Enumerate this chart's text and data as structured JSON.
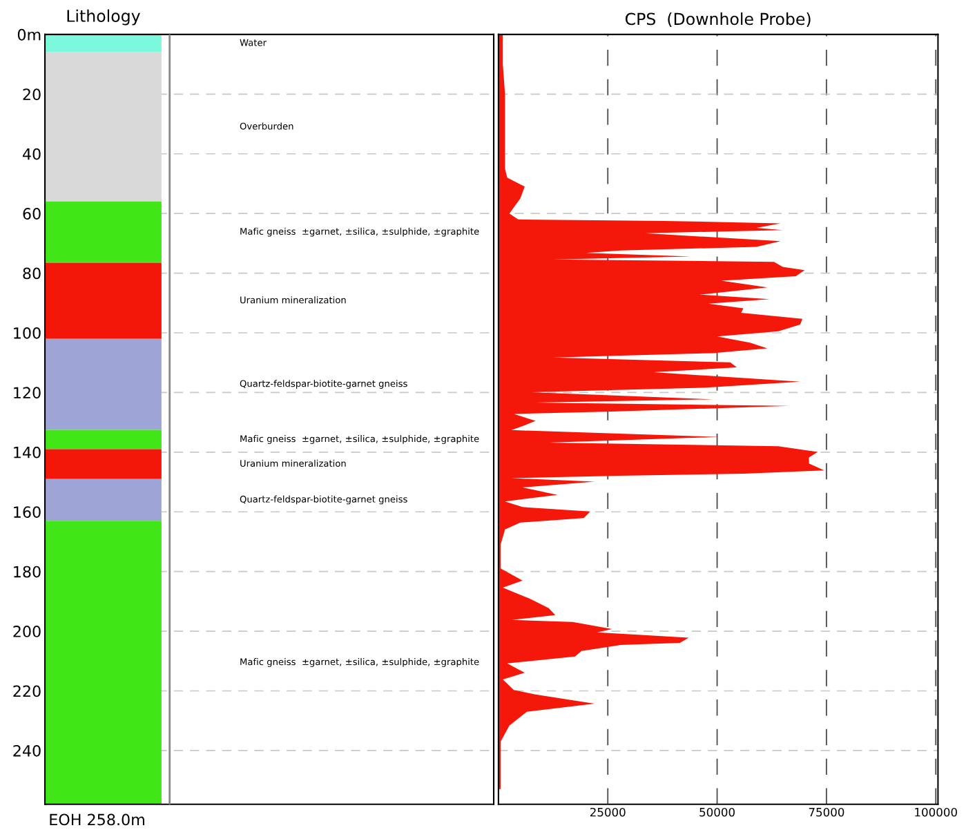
{
  "chart_data": [
    {
      "type": "bar",
      "stacked": true,
      "title": "Lithology",
      "categories": [
        null
      ],
      "ylim": [
        258,
        0
      ],
      "yticks": [
        {
          "value": 0,
          "label": "0m"
        },
        20,
        40,
        60,
        80,
        100,
        120,
        140,
        160,
        180,
        200,
        220,
        240
      ],
      "grid": "y",
      "tick_labels": "y",
      "series": [
        {
          "name": "Water",
          "color": "#7cf8dc",
          "values": [
            6
          ]
        },
        {
          "name": "Overburden",
          "color": "#d9d9d9",
          "values": [
            50
          ]
        },
        {
          "name": "Mafic gneiss  ±garnet, ±silica, ±sulphide, ±graphite",
          "color": "#41e619",
          "values": [
            20.5
          ]
        },
        {
          "name": "Uranium mineralization",
          "color": "#f5160a",
          "values": [
            25.5
          ]
        },
        {
          "name": "Quartz-feldspar-biotite-garnet gneiss",
          "color": "#9fa4d6",
          "values": [
            30.5
          ]
        },
        {
          "name": "Mafic gneiss  ±garnet, ±silica, ±sulphide, ±graphite",
          "color": "#41e619",
          "values": [
            6.5
          ]
        },
        {
          "name": "Uranium mineralization",
          "color": "#f5160a",
          "values": [
            10
          ]
        },
        {
          "name": "Quartz-feldspar-biotite-garnet gneiss",
          "color": "#9fa4d6",
          "values": [
            14
          ]
        },
        {
          "name": "Mafic gneiss  ±garnet, ±silica, ±sulphide, ±graphite",
          "color": "#41e619",
          "values": [
            95
          ]
        }
      ],
      "annotations": [
        "EOH 258.0m"
      ]
    },
    {
      "type": "area",
      "orientation": "horizontal",
      "title": "CPS  (Downhole Probe)",
      "ylim": [
        258,
        0
      ],
      "yticks": [
        0,
        20,
        40,
        60,
        80,
        100,
        120,
        140,
        160,
        180,
        200,
        220,
        240
      ],
      "xlim": [
        0,
        100500
      ],
      "xticks": [
        25000,
        50000,
        75000,
        100000
      ],
      "tick_labels": "x",
      "grid": true,
      "x": [
        0,
        10,
        20,
        30,
        45,
        48,
        51,
        55,
        58,
        60,
        62,
        62.5,
        63.3,
        64.8,
        65.6,
        66.6,
        67.7,
        69.3,
        71.2,
        72.4,
        73.2,
        74.4,
        75.4,
        76.2,
        77.9,
        79,
        81,
        82.5,
        84.8,
        87.2,
        88.7,
        90.2,
        91.8,
        93.3,
        95.3,
        97.2,
        99.5,
        101.2,
        103.3,
        105.2,
        106.8,
        108.3,
        109.9,
        111.6,
        113.2,
        116.4,
        118.4,
        119.9,
        122.3,
        123.4,
        124.5,
        126.4,
        127.2,
        129.5,
        131,
        132.6,
        134.9,
        136.8,
        138,
        139.9,
        141.8,
        143.8,
        146.1,
        147.2,
        147.9,
        148.7,
        149.9,
        151.8,
        154.3,
        156.5,
        158.4,
        159.9,
        162.1,
        163.6,
        165.9,
        171,
        179,
        183,
        185.4,
        189.3,
        192.3,
        194.6,
        196.2,
        196.9,
        199.3,
        200.4,
        202.2,
        203.9,
        204.6,
        206.6,
        208.5,
        210.8,
        213.9,
        216.2,
        219.7,
        221.2,
        224.3,
        227,
        229.3,
        231.6,
        237,
        252.9
      ],
      "series": [
        {
          "color": "#f5180a",
          "values": [
            1000,
            1000,
            1500,
            1500,
            1500,
            2000,
            6000,
            5000,
            3500,
            2500,
            4500,
            38000,
            64500,
            59000,
            65000,
            33500,
            46000,
            64500,
            59000,
            28000,
            20000,
            44000,
            12500,
            63000,
            65000,
            70000,
            68000,
            51000,
            61500,
            46000,
            62000,
            48000,
            56000,
            55500,
            69500,
            69000,
            64000,
            50000,
            57500,
            61500,
            49000,
            12500,
            53000,
            54500,
            35500,
            69000,
            47000,
            7500,
            49000,
            8500,
            66500,
            26000,
            3500,
            8500,
            6000,
            3000,
            50500,
            11500,
            64000,
            73000,
            71000,
            71000,
            74500,
            56000,
            27500,
            3000,
            22000,
            5500,
            13500,
            1500,
            5500,
            21000,
            19500,
            5000,
            1500,
            500,
            500,
            5500,
            1000,
            7500,
            11500,
            13000,
            3000,
            17000,
            26000,
            22500,
            43500,
            41500,
            28000,
            19000,
            17500,
            2000,
            6000,
            1000,
            3500,
            8500,
            22000,
            6500,
            4500,
            2500,
            500,
            500
          ]
        }
      ]
    }
  ]
}
